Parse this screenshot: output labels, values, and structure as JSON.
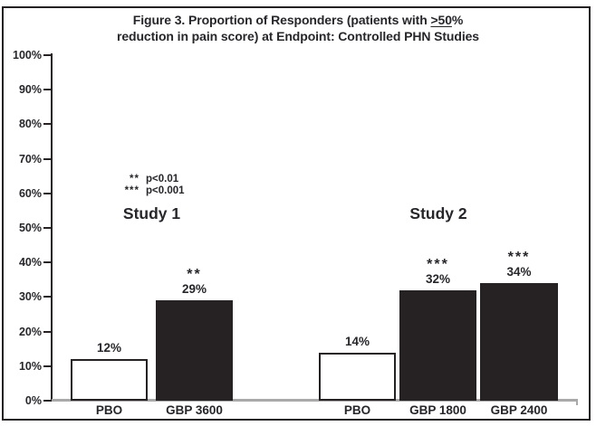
{
  "title": {
    "line1_pre": "Figure 3. Proportion of Responders (patients with ",
    "line1_underline": ">50",
    "line1_post": "%",
    "line2": "reduction in pain score) at Endpoint: Controlled PHN Studies"
  },
  "legend": {
    "entries": [
      {
        "symbol": "**",
        "label": "p<0.01"
      },
      {
        "symbol": "***",
        "label": "p<0.001"
      }
    ]
  },
  "chart_data": {
    "type": "bar",
    "title": "Figure 3. Proportion of Responders (patients with ≥50% reduction in pain score) at Endpoint: Controlled PHN Studies",
    "xlabel": "",
    "ylabel": "",
    "ylim": [
      0,
      100
    ],
    "grid": false,
    "ytick_labels": [
      "0%",
      "10%",
      "20%",
      "30%",
      "40%",
      "50%",
      "60%",
      "70%",
      "80%",
      "90%",
      "100%"
    ],
    "annotations": [
      "** p<0.01",
      "*** p<0.001"
    ],
    "groups": [
      {
        "name": "Study 1",
        "bars": [
          {
            "category": "PBO",
            "value": 12,
            "value_label": "12%",
            "fill": "white",
            "significance": ""
          },
          {
            "category": "GBP 3600",
            "value": 29,
            "value_label": "29%",
            "fill": "black",
            "significance": "**"
          }
        ]
      },
      {
        "name": "Study 2",
        "bars": [
          {
            "category": "PBO",
            "value": 14,
            "value_label": "14%",
            "fill": "white",
            "significance": ""
          },
          {
            "category": "GBP 1800",
            "value": 32,
            "value_label": "32%",
            "fill": "black",
            "significance": "***"
          },
          {
            "category": "GBP 2400",
            "value": 34,
            "value_label": "34%",
            "fill": "black",
            "significance": "***"
          }
        ]
      }
    ]
  },
  "colors": {
    "bar_fill_dark": "#262224",
    "bar_fill_light": "#ffffff",
    "text": "#26262b",
    "baseline_gray": "#a9a9a9"
  }
}
